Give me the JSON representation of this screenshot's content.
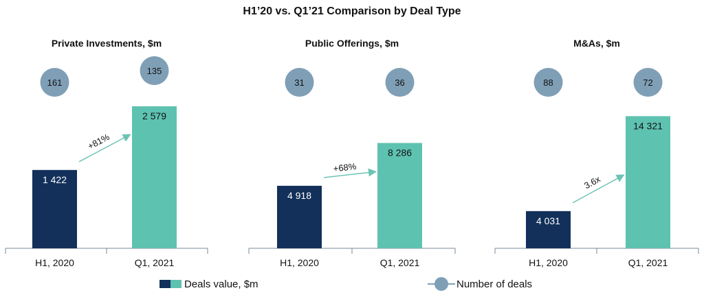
{
  "title": "H1’20 vs. Q1’21 Comparison by Deal Type",
  "colors": {
    "h1_2020": "#12305a",
    "q1_2021": "#5ec2b1",
    "deals_circle": "#7f9fb6",
    "arrow": "#6cc3b4",
    "axis": "#7a8a99"
  },
  "chart_data": [
    {
      "type": "bar",
      "title": "Private Investments, $m",
      "categories": [
        "H1, 2020",
        "Q1, 2021"
      ],
      "values": [
        1422,
        2579
      ],
      "value_labels": [
        "1 422",
        "2 579"
      ],
      "deals": [
        161,
        135
      ],
      "growth_label": "+81%",
      "ylim": [
        0,
        3300
      ]
    },
    {
      "type": "bar",
      "title": "Public Offerings, $m",
      "categories": [
        "H1, 2020",
        "Q1, 2021"
      ],
      "values": [
        4918,
        8286
      ],
      "value_labels": [
        "4 918",
        "8 286"
      ],
      "deals": [
        31,
        36
      ],
      "growth_label": "+68%",
      "ylim": [
        0,
        14300
      ]
    },
    {
      "type": "bar",
      "title": "M&As, $m",
      "categories": [
        "H1, 2020",
        "Q1, 2021"
      ],
      "values": [
        4031,
        14321
      ],
      "value_labels": [
        "4 031",
        "14 321"
      ],
      "deals": [
        88,
        72
      ],
      "growth_label": "3.6x",
      "ylim": [
        0,
        19700
      ]
    }
  ],
  "legend": {
    "value_label": "Deals value, $m",
    "deals_label": "Number of deals"
  }
}
